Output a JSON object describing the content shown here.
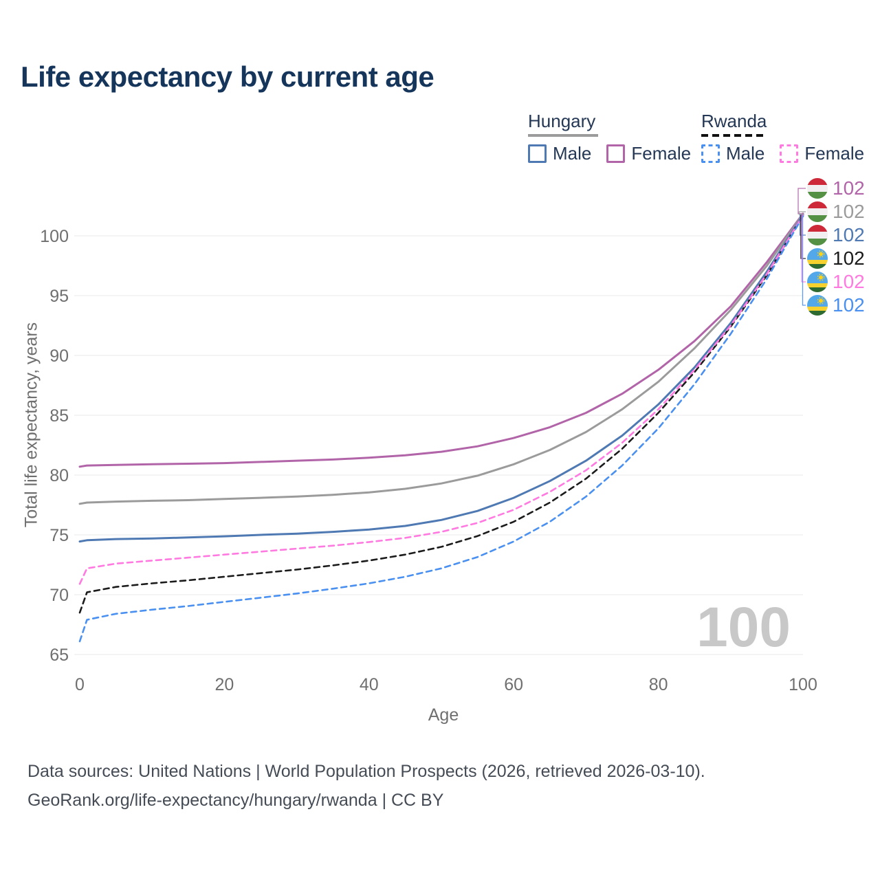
{
  "title": "Life expectancy by current age",
  "legend": {
    "groups": [
      {
        "name": "Hungary",
        "line_style": "solid",
        "underline_color": "#9b9b9b",
        "items": [
          {
            "label": "Male",
            "color": "#4e79b2"
          },
          {
            "label": "Female",
            "color": "#b164a8"
          }
        ]
      },
      {
        "name": "Rwanda",
        "line_style": "dashed",
        "underline_color": "#111111",
        "items": [
          {
            "label": "Male",
            "color": "#4a90f0"
          },
          {
            "label": "Female",
            "color": "#ff7ae0"
          }
        ]
      }
    ]
  },
  "watermark": "100",
  "footer": {
    "line1": "Data sources: United Nations | World Population Prospects (2026, retrieved 2026-03-10).",
    "line2": "GeoRank.org/life-expectancy/hungary/rwanda | CC BY"
  },
  "chart_data": {
    "type": "line",
    "title": "Life expectancy by current age",
    "xlabel": "Age",
    "ylabel": "Total life expectancy, years",
    "xlim": [
      0,
      100
    ],
    "ylim": [
      65,
      103
    ],
    "x_ticks": [
      0,
      20,
      40,
      60,
      80,
      100
    ],
    "y_ticks": [
      65,
      70,
      75,
      80,
      85,
      90,
      95,
      100
    ],
    "grid": "horizontal-only",
    "legend_position": "top-right",
    "ages": [
      0,
      1,
      5,
      10,
      15,
      20,
      25,
      30,
      35,
      40,
      45,
      50,
      55,
      60,
      65,
      70,
      75,
      80,
      85,
      90,
      95,
      100
    ],
    "series": [
      {
        "name": "Hungary Female",
        "country": "Hungary",
        "sex": "Female",
        "color": "#b164a8",
        "dash": false,
        "flag": "hu",
        "end_label": "102",
        "values": [
          80.7,
          80.8,
          80.85,
          80.9,
          80.95,
          81.0,
          81.1,
          81.2,
          81.3,
          81.45,
          81.65,
          81.95,
          82.4,
          83.1,
          84.0,
          85.2,
          86.8,
          88.8,
          91.2,
          94.1,
          97.8,
          101.85
        ]
      },
      {
        "name": "Hungary Both sexes",
        "country": "Hungary",
        "sex": "Both",
        "color": "#9b9b9b",
        "dash": false,
        "flag": "hu",
        "end_label": "102",
        "values": [
          77.6,
          77.7,
          77.78,
          77.85,
          77.9,
          78.0,
          78.1,
          78.2,
          78.35,
          78.55,
          78.85,
          79.3,
          79.95,
          80.9,
          82.1,
          83.6,
          85.5,
          87.8,
          90.6,
          93.8,
          97.5,
          101.8
        ]
      },
      {
        "name": "Hungary Male",
        "country": "Hungary",
        "sex": "Male",
        "color": "#4e79b2",
        "dash": false,
        "flag": "hu",
        "end_label": "102",
        "values": [
          74.45,
          74.55,
          74.65,
          74.7,
          74.78,
          74.88,
          75.0,
          75.1,
          75.25,
          75.45,
          75.75,
          76.25,
          77.0,
          78.1,
          79.5,
          81.2,
          83.3,
          85.9,
          89.0,
          92.7,
          97.0,
          101.75
        ]
      },
      {
        "name": "Rwanda Both sexes",
        "country": "Rwanda",
        "sex": "Both",
        "color": "#1b1b1b",
        "dash": true,
        "flag": "rw",
        "end_label": "102",
        "values": [
          68.5,
          70.2,
          70.65,
          70.95,
          71.2,
          71.5,
          71.8,
          72.1,
          72.45,
          72.85,
          73.35,
          74.0,
          74.9,
          76.1,
          77.7,
          79.7,
          82.2,
          85.2,
          88.6,
          92.4,
          96.7,
          101.7
        ]
      },
      {
        "name": "Rwanda Female",
        "country": "Rwanda",
        "sex": "Female",
        "color": "#ff7ae0",
        "dash": true,
        "flag": "rw",
        "end_label": "102",
        "values": [
          70.9,
          72.2,
          72.6,
          72.85,
          73.1,
          73.35,
          73.6,
          73.85,
          74.1,
          74.4,
          74.75,
          75.25,
          76.0,
          77.1,
          78.6,
          80.4,
          82.7,
          85.5,
          88.8,
          92.5,
          96.8,
          101.72
        ]
      },
      {
        "name": "Rwanda Male",
        "country": "Rwanda",
        "sex": "Male",
        "color": "#4a90f0",
        "dash": true,
        "flag": "rw",
        "end_label": "102",
        "values": [
          66.1,
          67.9,
          68.4,
          68.75,
          69.05,
          69.4,
          69.75,
          70.1,
          70.5,
          70.95,
          71.5,
          72.2,
          73.15,
          74.45,
          76.1,
          78.2,
          80.8,
          83.9,
          87.6,
          91.8,
          96.4,
          101.65
        ]
      }
    ]
  }
}
